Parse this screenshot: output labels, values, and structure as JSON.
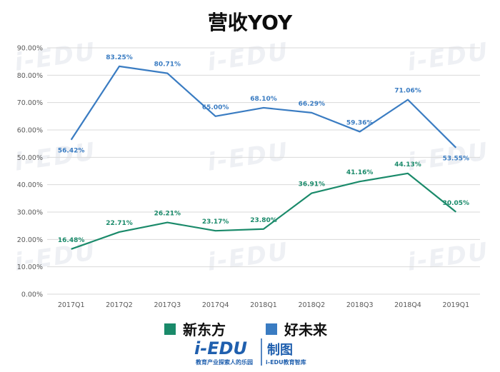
{
  "title": "营收YOY",
  "legend": [
    {
      "name": "新东方",
      "color": "#1a8a6a"
    },
    {
      "name": "好未来",
      "color": "#3a7cc2"
    }
  ],
  "watermark": "i-EDU",
  "footer": {
    "logo_text": "i-EDU",
    "logo_subtext": "教育产业探索人的乐园",
    "badge_text": "制图",
    "badge_subtext": "i-EDU教育智库"
  },
  "chart_data": {
    "type": "line",
    "categories": [
      "2017Q1",
      "2017Q2",
      "2017Q3",
      "2017Q4",
      "2018Q1",
      "2018Q2",
      "2018Q3",
      "2018Q4",
      "2019Q1"
    ],
    "ylim": [
      0,
      90
    ],
    "yticks": [
      "0.00%",
      "10.00%",
      "20.00%",
      "30.00%",
      "40.00%",
      "50.00%",
      "60.00%",
      "70.00%",
      "80.00%",
      "90.00%"
    ],
    "grid": true,
    "legend_position": "bottom",
    "series": [
      {
        "name": "新东方",
        "color": "#1a8a6a",
        "values": [
          16.48,
          22.71,
          26.21,
          23.17,
          23.8,
          36.91,
          41.16,
          44.13,
          30.05
        ],
        "labels": [
          "16.48%",
          "22.71%",
          "26.21%",
          "23.17%",
          "23.80%",
          "36.91%",
          "41.16%",
          "44.13%",
          "30.05%"
        ]
      },
      {
        "name": "好未来",
        "color": "#3a7cc2",
        "values": [
          56.42,
          83.25,
          80.71,
          65.0,
          68.1,
          66.29,
          59.36,
          71.06,
          53.55
        ],
        "labels": [
          "56.42%",
          "83.25%",
          "80.71%",
          "65.00%",
          "68.10%",
          "66.29%",
          "59.36%",
          "71.06%",
          "53.55%"
        ]
      }
    ]
  }
}
